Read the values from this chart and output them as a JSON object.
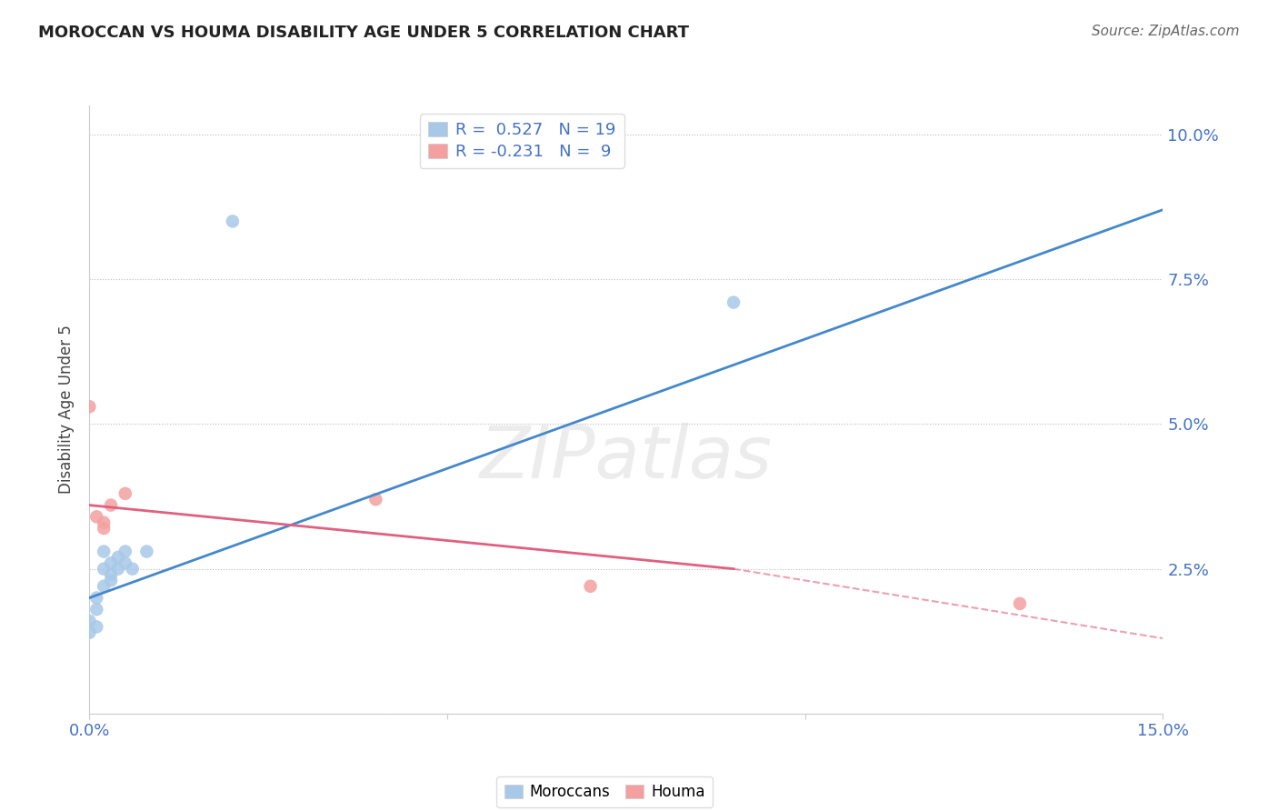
{
  "title": "MOROCCAN VS HOUMA DISABILITY AGE UNDER 5 CORRELATION CHART",
  "source": "Source: ZipAtlas.com",
  "ylabel": "Disability Age Under 5",
  "xlim": [
    0,
    0.15
  ],
  "ylim": [
    0,
    0.105
  ],
  "xticks": [
    0.0,
    0.05,
    0.1,
    0.15
  ],
  "xtick_labels": [
    "0.0%",
    "",
    "",
    "15.0%"
  ],
  "yticks": [
    0.0,
    0.025,
    0.05,
    0.075,
    0.1
  ],
  "ytick_labels": [
    "",
    "2.5%",
    "5.0%",
    "7.5%",
    "10.0%"
  ],
  "blue_R": 0.527,
  "blue_N": 19,
  "pink_R": -0.231,
  "pink_N": 9,
  "blue_color": "#a8c8e8",
  "pink_color": "#f4a0a0",
  "blue_line_color": "#4488cc",
  "pink_line_color": "#e06080",
  "watermark": "ZIPatlas",
  "moroccan_points": [
    [
      0.0,
      0.014
    ],
    [
      0.0,
      0.016
    ],
    [
      0.001,
      0.015
    ],
    [
      0.001,
      0.018
    ],
    [
      0.001,
      0.02
    ],
    [
      0.002,
      0.022
    ],
    [
      0.002,
      0.025
    ],
    [
      0.002,
      0.028
    ],
    [
      0.003,
      0.024
    ],
    [
      0.003,
      0.026
    ],
    [
      0.003,
      0.023
    ],
    [
      0.004,
      0.027
    ],
    [
      0.004,
      0.025
    ],
    [
      0.005,
      0.028
    ],
    [
      0.005,
      0.026
    ],
    [
      0.006,
      0.025
    ],
    [
      0.008,
      0.028
    ],
    [
      0.02,
      0.085
    ],
    [
      0.09,
      0.071
    ]
  ],
  "houma_points": [
    [
      0.0,
      0.053
    ],
    [
      0.001,
      0.034
    ],
    [
      0.002,
      0.033
    ],
    [
      0.002,
      0.032
    ],
    [
      0.003,
      0.036
    ],
    [
      0.005,
      0.038
    ],
    [
      0.04,
      0.037
    ],
    [
      0.07,
      0.022
    ],
    [
      0.13,
      0.019
    ]
  ],
  "blue_line": [
    [
      0.0,
      0.02
    ],
    [
      0.15,
      0.087
    ]
  ],
  "pink_line_solid": [
    [
      0.0,
      0.036
    ],
    [
      0.09,
      0.025
    ]
  ],
  "pink_line_dash": [
    [
      0.09,
      0.025
    ],
    [
      0.15,
      0.013
    ]
  ]
}
